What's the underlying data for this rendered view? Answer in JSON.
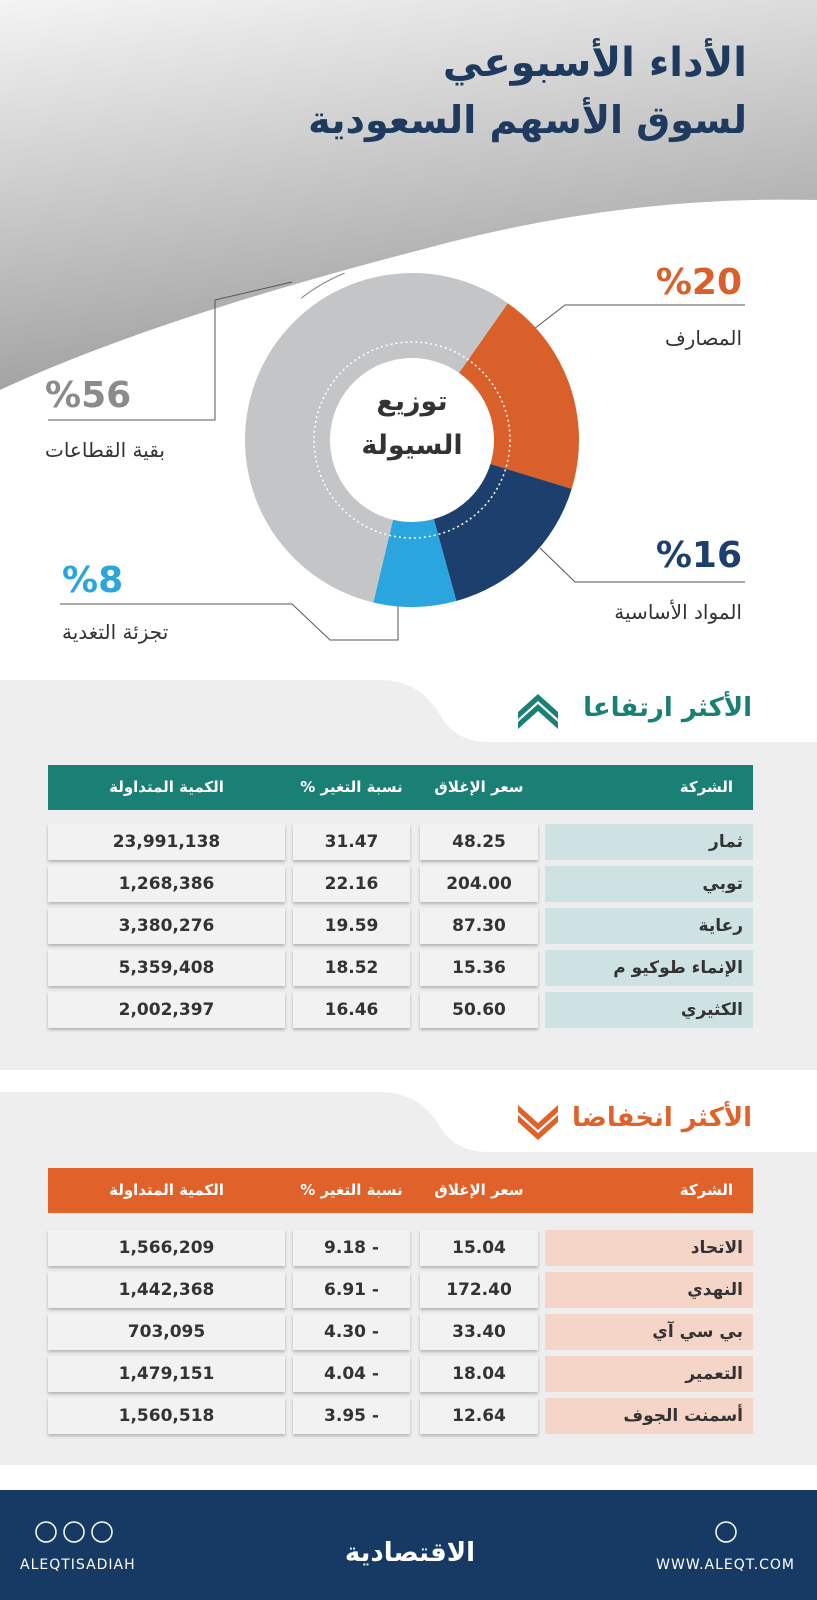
{
  "header": {
    "title_line1": "الأداء الأسبوعي",
    "title_line2": "لسوق الأسهم السعودية"
  },
  "chart_data": {
    "type": "donut",
    "title": "توزيع السيولة",
    "categories": [
      "المصارف",
      "المواد الأساسية",
      "تجزئة التغدية",
      "بقية القطاعات"
    ],
    "values": [
      20,
      16,
      8,
      56
    ],
    "value_labels": [
      "%20",
      "%16",
      "%8",
      "%56"
    ],
    "colors": [
      "#d9602a",
      "#1d3f6e",
      "#2aa5de",
      "#c4c5c7"
    ]
  },
  "rising": {
    "title": "الأكثر ارتفاعا",
    "color": "#1a7f74",
    "row_color": "#cfe2e3",
    "columns": [
      "الشركة",
      "سعر الإغلاق",
      "نسبة التغير %",
      "الكمية المتداولة"
    ],
    "rows": [
      [
        "ثمار",
        "48.25",
        "31.47",
        "23,991,138"
      ],
      [
        "توبي",
        "204.00",
        "22.16",
        "1,268,386"
      ],
      [
        "رعاية",
        "87.30",
        "19.59",
        "3,380,276"
      ],
      [
        "الإنماء طوكيو م",
        "15.36",
        "18.52",
        "5,359,408"
      ],
      [
        "الكثيري",
        "50.60",
        "16.46",
        "2,002,397"
      ]
    ]
  },
  "falling": {
    "title": "الأكثر انخفاضا",
    "color": "#e0612a",
    "row_color": "#f5d5c8",
    "columns": [
      "الشركة",
      "سعر الإغلاق",
      "نسبة التغير %",
      "الكمية المتداولة"
    ],
    "rows": [
      [
        "الاتحاد",
        "15.04",
        "9.18 -",
        "1,566,209"
      ],
      [
        "النهدي",
        "172.40",
        "6.91 -",
        "1,442,368"
      ],
      [
        "بي سي آي",
        "33.40",
        "4.30 -",
        "703,095"
      ],
      [
        "التعمير",
        "18.04",
        "4.04 -",
        "1,479,151"
      ],
      [
        "أسمنت الجوف",
        "12.64",
        "3.95 -",
        "1,560,518"
      ]
    ]
  },
  "footer": {
    "handle": "ALEQTISADIAH",
    "logo": "الاقتصادية",
    "website": "WWW.ALEQT.COM"
  }
}
